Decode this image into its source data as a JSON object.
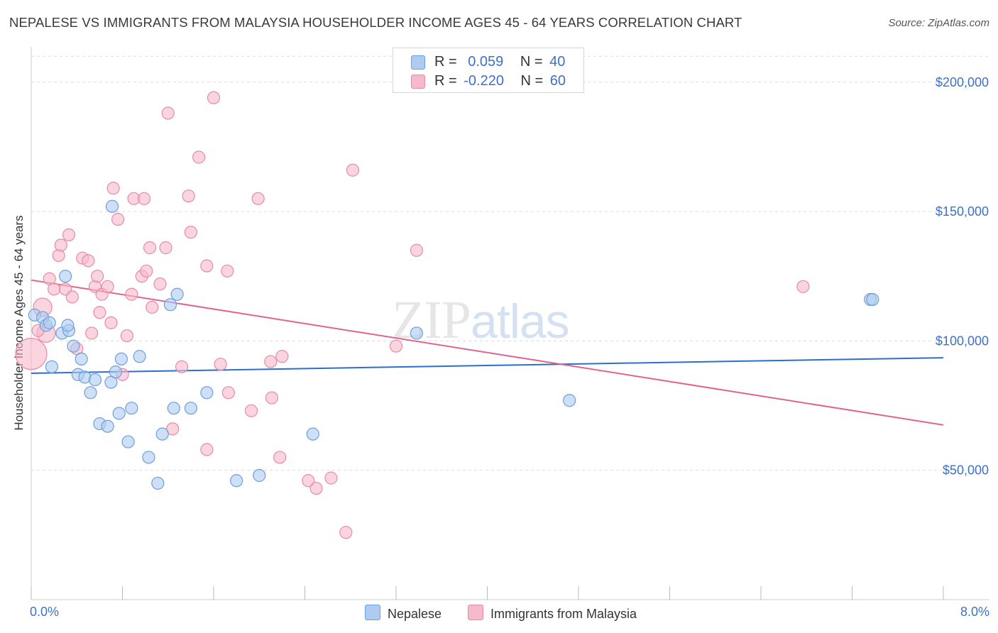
{
  "title": "NEPALESE VS IMMIGRANTS FROM MALAYSIA HOUSEHOLDER INCOME AGES 45 - 64 YEARS CORRELATION CHART",
  "source": "Source: ZipAtlas.com",
  "watermark": {
    "zip": "ZIP",
    "atlas": "atlas"
  },
  "legend": {
    "rows": [
      {
        "r_label": "R =",
        "r_value": "0.059",
        "n_label": "N =",
        "n_value": "40",
        "color": "#aeccf2"
      },
      {
        "r_label": "R =",
        "r_value": "-0.220",
        "n_label": "N =",
        "n_value": "60",
        "color": "#f7b9cb"
      }
    ]
  },
  "bottom_legend": {
    "nepalese": "Nepalese",
    "malaysia": "Immigrants from Malaysia"
  },
  "colors": {
    "blue_fill": "#aeccf2",
    "blue_stroke": "#6d9fdc",
    "blue_line": "#2b6fcd",
    "pink_fill": "#f7b9cb",
    "pink_stroke": "#e98aa8",
    "pink_line": "#e0648f",
    "tick_text": "#3d72c4"
  },
  "chart_data": {
    "type": "scatter",
    "title": "NEPALESE VS IMMIGRANTS FROM MALAYSIA HOUSEHOLDER INCOME AGES 45 - 64 YEARS CORRELATION CHART",
    "xlabel": "",
    "ylabel": "Householder Income Ages 45 - 64 years",
    "xlim": [
      0,
      8
    ],
    "ylim": [
      0,
      212000
    ],
    "x_tick_labels": [
      "0.0%",
      "8.0%"
    ],
    "y_ticks": [
      50000,
      100000,
      150000,
      200000
    ],
    "y_tick_labels": [
      "$50,000",
      "$100,000",
      "$150,000",
      "$200,000"
    ],
    "grid": true,
    "series": [
      {
        "name": "Nepalese",
        "points": [
          [
            0.03,
            110000
          ],
          [
            0.1,
            109000
          ],
          [
            0.13,
            106000
          ],
          [
            0.16,
            107000
          ],
          [
            0.27,
            103000
          ],
          [
            0.33,
            104000
          ],
          [
            0.3,
            125000
          ],
          [
            0.32,
            106000
          ],
          [
            0.18,
            90000
          ],
          [
            0.37,
            98000
          ],
          [
            0.44,
            93000
          ],
          [
            0.41,
            87000
          ],
          [
            0.47,
            86000
          ],
          [
            0.52,
            80000
          ],
          [
            0.56,
            85000
          ],
          [
            0.7,
            84000
          ],
          [
            0.74,
            88000
          ],
          [
            0.79,
            93000
          ],
          [
            0.95,
            94000
          ],
          [
            0.6,
            68000
          ],
          [
            0.67,
            67000
          ],
          [
            0.77,
            72000
          ],
          [
            0.88,
            74000
          ],
          [
            0.85,
            61000
          ],
          [
            1.15,
            64000
          ],
          [
            1.03,
            55000
          ],
          [
            1.11,
            45000
          ],
          [
            1.25,
            74000
          ],
          [
            1.4,
            74000
          ],
          [
            1.54,
            80000
          ],
          [
            1.22,
            114000
          ],
          [
            1.28,
            118000
          ],
          [
            0.71,
            152000
          ],
          [
            1.8,
            46000
          ],
          [
            2.0,
            48000
          ],
          [
            2.47,
            64000
          ],
          [
            3.38,
            103000
          ],
          [
            4.72,
            77000
          ],
          [
            7.36,
            116000
          ],
          [
            7.38,
            116000
          ]
        ]
      },
      {
        "name": "Immigrants from Malaysia",
        "points": [
          [
            0.0,
            95000
          ],
          [
            0.1,
            113000
          ],
          [
            0.13,
            103000
          ],
          [
            0.16,
            124000
          ],
          [
            0.2,
            120000
          ],
          [
            0.24,
            133000
          ],
          [
            0.26,
            137000
          ],
          [
            0.3,
            120000
          ],
          [
            0.33,
            141000
          ],
          [
            0.36,
            117000
          ],
          [
            0.4,
            97000
          ],
          [
            0.45,
            132000
          ],
          [
            0.5,
            131000
          ],
          [
            0.53,
            103000
          ],
          [
            0.56,
            121000
          ],
          [
            0.58,
            125000
          ],
          [
            0.6,
            111000
          ],
          [
            0.62,
            118000
          ],
          [
            0.67,
            121000
          ],
          [
            0.7,
            107000
          ],
          [
            0.72,
            159000
          ],
          [
            0.76,
            147000
          ],
          [
            0.8,
            87000
          ],
          [
            0.84,
            102000
          ],
          [
            0.88,
            118000
          ],
          [
            0.9,
            155000
          ],
          [
            0.97,
            125000
          ],
          [
            0.99,
            155000
          ],
          [
            1.01,
            127000
          ],
          [
            1.04,
            136000
          ],
          [
            1.06,
            113000
          ],
          [
            1.13,
            122000
          ],
          [
            1.18,
            136000
          ],
          [
            1.2,
            188000
          ],
          [
            1.24,
            66000
          ],
          [
            1.32,
            90000
          ],
          [
            1.38,
            156000
          ],
          [
            1.4,
            142000
          ],
          [
            1.47,
            171000
          ],
          [
            1.54,
            58000
          ],
          [
            1.54,
            129000
          ],
          [
            1.6,
            194000
          ],
          [
            1.66,
            91000
          ],
          [
            1.72,
            127000
          ],
          [
            1.73,
            80000
          ],
          [
            1.93,
            73000
          ],
          [
            1.99,
            155000
          ],
          [
            2.1,
            92000
          ],
          [
            2.11,
            78000
          ],
          [
            2.18,
            55000
          ],
          [
            2.2,
            94000
          ],
          [
            2.43,
            46000
          ],
          [
            2.5,
            43000
          ],
          [
            2.63,
            47000
          ],
          [
            2.76,
            26000
          ],
          [
            2.82,
            166000
          ],
          [
            3.2,
            98000
          ],
          [
            3.38,
            135000
          ],
          [
            6.77,
            121000
          ],
          [
            0.06,
            104000
          ]
        ]
      }
    ],
    "trend_lines": [
      {
        "name": "Nepalese",
        "x": [
          0,
          8
        ],
        "y": [
          87500,
          93500
        ]
      },
      {
        "name": "Immigrants from Malaysia",
        "x": [
          0,
          8
        ],
        "y": [
          123500,
          67500
        ]
      }
    ]
  }
}
